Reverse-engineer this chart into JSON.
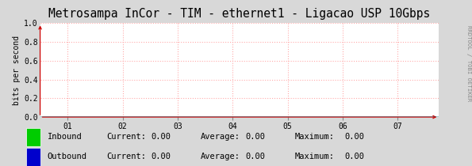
{
  "title": "Metrosampa InCor - TIM - ethernet1 - Ligacao USP 10Gbps",
  "ylabel": "bits per second",
  "bg_color": "#d8d8d8",
  "plot_bg_color": "#ffffff",
  "grid_color": "#ffaaaa",
  "x_ticks": [
    1,
    2,
    3,
    4,
    5,
    6,
    7
  ],
  "x_tick_labels": [
    "01",
    "02",
    "03",
    "04",
    "05",
    "06",
    "07"
  ],
  "xlim": [
    0.5,
    7.75
  ],
  "ylim": [
    0.0,
    1.0
  ],
  "y_ticks": [
    0.0,
    0.2,
    0.4,
    0.6,
    0.8,
    1.0
  ],
  "y_tick_labels": [
    "0.0",
    "0.2",
    "0.4",
    "0.6",
    "0.8",
    "1.0"
  ],
  "arrow_color": "#cc0000",
  "inbound_color": "#00cc00",
  "outbound_color": "#0000cc",
  "legend_items": [
    {
      "label": "Inbound",
      "color": "#00cc00"
    },
    {
      "label": "Outbound",
      "color": "#0000cc"
    }
  ],
  "legend_stats": [
    {
      "current": "0.00",
      "average": "0.00",
      "maximum": "0.00"
    },
    {
      "current": "0.00",
      "average": "0.00",
      "maximum": "0.00"
    }
  ],
  "side_label": "RRDTOOL / TOBI OETIKER",
  "title_fontsize": 10.5,
  "tick_fontsize": 7,
  "ylabel_fontsize": 7,
  "legend_fontsize": 7.5
}
